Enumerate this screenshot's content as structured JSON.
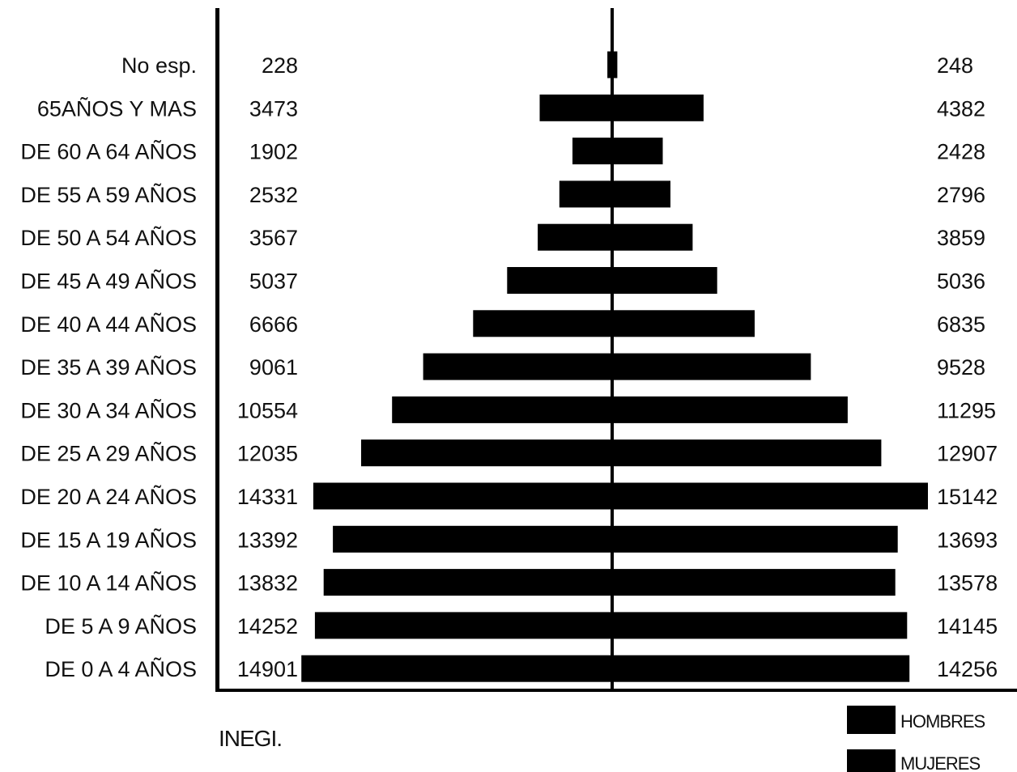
{
  "chart_data": {
    "type": "bar",
    "subtype": "population-pyramid",
    "categories": [
      "No esp.",
      "65AÑOS Y MAS",
      "DE 60 A 64 AÑOS",
      "DE 55 A 59 AÑOS",
      "DE 50 A 54 AÑOS",
      "DE 45 A 49 AÑOS",
      "DE 40 A 44 AÑOS",
      "DE 35 A 39 AÑOS",
      "DE 30 A 34 AÑOS",
      "DE 25 A 29 AÑOS",
      "DE 20 A 24 AÑOS",
      "DE 15 A 19 AÑOS",
      "DE 10 A 14 AÑOS",
      "DE 5 A 9 AÑOS",
      "DE 0 A 4 AÑOS"
    ],
    "series": [
      {
        "name": "HOMBRES",
        "side": "left",
        "values": [
          228,
          3473,
          1902,
          2532,
          3567,
          5037,
          6666,
          9061,
          10554,
          12035,
          14331,
          13392,
          13832,
          14252,
          14901
        ]
      },
      {
        "name": "MUJERES",
        "side": "right",
        "values": [
          248,
          4382,
          2428,
          2796,
          3859,
          5036,
          6835,
          9528,
          11295,
          12907,
          15142,
          13693,
          13578,
          14145,
          14256
        ]
      }
    ],
    "value_labels": {
      "left": [
        "228",
        "3473",
        "1902",
        "2532",
        "3567",
        "5037",
        "6666",
        "9061",
        "10554",
        "12035",
        "14331",
        "13392",
        "13832",
        "14252",
        "14901"
      ],
      "right": [
        "248",
        "4382",
        "2428",
        "2796",
        "3859",
        "5036",
        "6835",
        "9528",
        "11295",
        "12907",
        "15142",
        "13693",
        "13578",
        "14145",
        "14256"
      ]
    },
    "source_note": "INEGI.",
    "legend": [
      {
        "label": "HOMBRES",
        "color": "#000000"
      },
      {
        "label": "MUJERES",
        "color": "#000000"
      }
    ],
    "legend_position": "bottom-right",
    "grid": false,
    "bar_color": "#000000"
  }
}
